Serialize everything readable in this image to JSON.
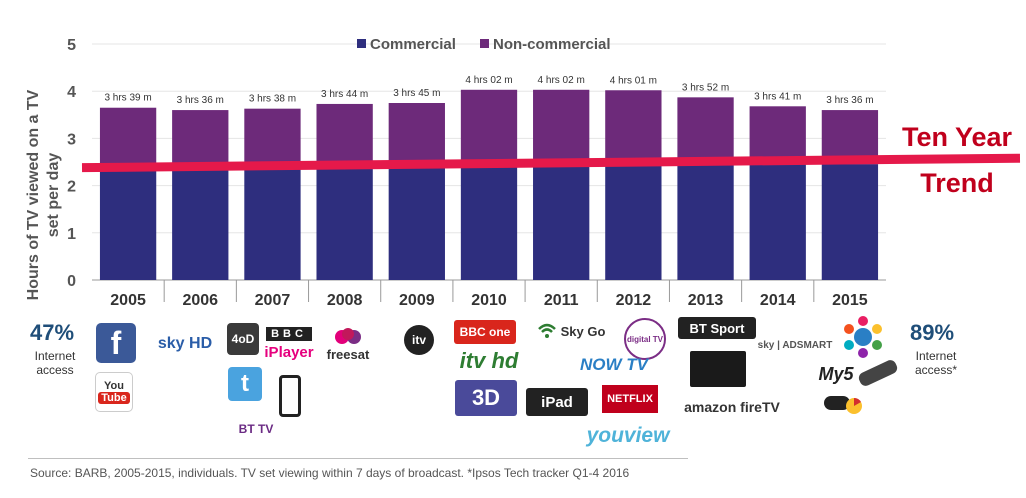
{
  "chart_data": {
    "type": "bar",
    "stacked": true,
    "categories": [
      "2005",
      "2006",
      "2007",
      "2008",
      "2009",
      "2010",
      "2011",
      "2012",
      "2013",
      "2014",
      "2015"
    ],
    "series": [
      {
        "name": "Commercial",
        "color": "#2e2e7e",
        "values": [
          2.45,
          2.42,
          2.43,
          2.47,
          2.5,
          2.55,
          2.55,
          2.55,
          2.5,
          2.46,
          2.45
        ]
      },
      {
        "name": "Non-commercial",
        "color": "#6d2a7a",
        "values": [
          1.2,
          1.18,
          1.2,
          1.26,
          1.25,
          1.48,
          1.48,
          1.47,
          1.37,
          1.22,
          1.15
        ]
      }
    ],
    "totals": [
      3.65,
      3.6,
      3.63,
      3.73,
      3.75,
      4.03,
      4.03,
      4.02,
      3.87,
      3.68,
      3.6
    ],
    "data_labels": [
      "3 hrs 39 m",
      "3 hrs 36 m",
      "3 hrs 38 m",
      "3 hrs 44 m",
      "3 hrs 45 m",
      "4 hrs 02 m",
      "4 hrs 02 m",
      "4 hrs 01 m",
      "3 hrs 52 m",
      "3 hrs 41 m",
      "3 hrs 36 m"
    ],
    "ylabel": "Hours of TV viewed on a TV set per day",
    "ylabel_lines": [
      "Hours of TV viewed on a TV",
      "set per day"
    ],
    "ylim": [
      0,
      5
    ],
    "yticks": [
      0,
      1,
      2,
      3,
      4,
      5
    ],
    "ytick_labels": [
      "0",
      "1",
      "2",
      "3",
      "4",
      "5"
    ],
    "legend": [
      "Commercial",
      "Non-commercial"
    ],
    "legend_position": "top-center",
    "trend": {
      "label_line1": "Ten Year",
      "label_line2": "Trend",
      "start": 2.38,
      "end": 2.58,
      "color": "#e5194a"
    }
  },
  "side_stats": {
    "left": {
      "value": "47%",
      "line1": "Internet",
      "line2": "access"
    },
    "right": {
      "value": "89%",
      "line1": "Internet",
      "line2": "access*"
    }
  },
  "logos": {
    "facebook": "f",
    "youtube_top": "You",
    "youtube_bottom": "Tube",
    "skyhd": "sky HD",
    "ch4": "4oD",
    "bbc": "BBC",
    "iplayer": "iPlayer",
    "freesat": "freesat",
    "twitter": "t",
    "bttv": "BT TV",
    "itv": "itv",
    "bbcone": "BBC one",
    "itvhd": "itv hd",
    "skygo": "Sky Go",
    "threed": "3D",
    "ipad": "iPad",
    "digitaltv": "digital TV",
    "nowtv": "NOW TV",
    "netflix": "NETFLIX",
    "btsport": "BT Sport",
    "youview": "youview",
    "amazon": "amazon fireTV",
    "skyadsmart": "sky | ADSMART",
    "my5": "My5"
  },
  "footer": {
    "source": "Source:  BARB, 2005-2015, individuals. TV set viewing within 7 days of broadcast. *Ipsos Tech tracker Q1-4 2016"
  }
}
